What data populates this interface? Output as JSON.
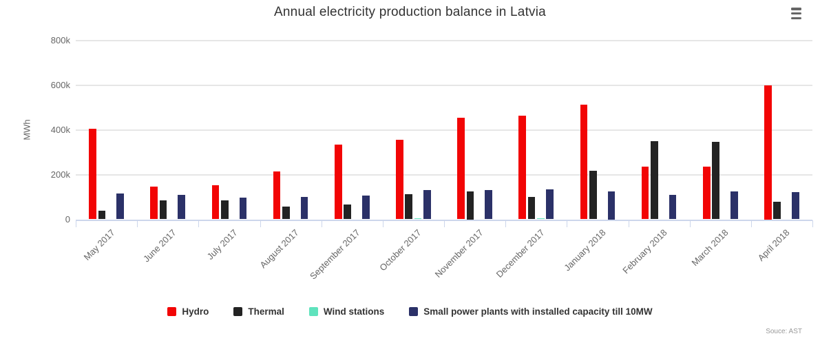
{
  "chart": {
    "credit": "Souce: AST",
    "menu_icon": "hamburger-icon",
    "background_color": "#ffffff",
    "gridline_color": "#e6e6e6",
    "axis_line_color": "#ccd6eb",
    "label_color": "#666666",
    "title_color": "#333333"
  },
  "chart_data": {
    "type": "bar",
    "title": "Annual electricity production balance in Latvia",
    "xlabel": "",
    "ylabel": "MWh",
    "ylim": [
      0,
      800000
    ],
    "grid": true,
    "legend_position": "bottom",
    "yticks": {
      "values": [
        0,
        200000,
        400000,
        600000,
        800000
      ],
      "labels": [
        "0",
        "200k",
        "400k",
        "600k",
        "800k"
      ]
    },
    "categories": [
      "May 2017",
      "June 2017",
      "July 2017",
      "August 2017",
      "September 2017",
      "October 2017",
      "November 2017",
      "December 2017",
      "January 2018",
      "February 2018",
      "March 2018",
      "April 2018"
    ],
    "series": [
      {
        "name": "Hydro",
        "color": "#f20505",
        "values": [
          405000,
          147000,
          154000,
          215000,
          335000,
          357000,
          455000,
          463000,
          514000,
          237000,
          236000,
          600000
        ]
      },
      {
        "name": "Thermal",
        "color": "#232323",
        "values": [
          38000,
          84000,
          84000,
          58000,
          65000,
          111000,
          125000,
          101000,
          217000,
          351000,
          346000,
          78000
        ]
      },
      {
        "name": "Wind stations",
        "color": "#5fe3bd",
        "values": [
          0,
          0,
          0,
          0,
          0,
          4000,
          0,
          5000,
          0,
          0,
          0,
          0
        ]
      },
      {
        "name": "Small power plants with installed capacity till 10MW",
        "color": "#2b3168",
        "values": [
          116000,
          110000,
          98000,
          101000,
          106000,
          131000,
          130000,
          133000,
          125000,
          110000,
          124000,
          121000
        ]
      }
    ]
  }
}
